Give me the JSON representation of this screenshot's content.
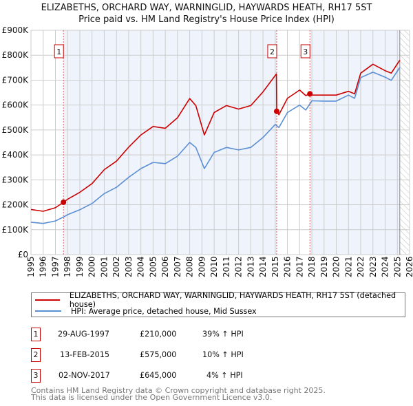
{
  "chart_data": {
    "type": "line",
    "title": "ELIZABETHS, ORCHARD WAY, WARNINGLID, HAYWARDS HEATH, RH17 5ST",
    "subtitle": "Price paid vs. HM Land Registry's House Price Index (HPI)",
    "xlim": [
      1995,
      2026
    ],
    "ylim": [
      0,
      900000
    ],
    "x_ticks": [
      "1995",
      "1996",
      "1997",
      "1998",
      "1999",
      "2000",
      "2001",
      "2002",
      "2003",
      "2004",
      "2005",
      "2006",
      "2007",
      "2008",
      "2009",
      "2010",
      "2011",
      "2012",
      "2013",
      "2014",
      "2015",
      "2016",
      "2017",
      "2018",
      "2019",
      "2020",
      "2021",
      "2022",
      "2023",
      "2024",
      "2025",
      "2026"
    ],
    "y_ticks": [
      {
        "value": 0,
        "label": "£0"
      },
      {
        "value": 100000,
        "label": "£100K"
      },
      {
        "value": 200000,
        "label": "£200K"
      },
      {
        "value": 300000,
        "label": "£300K"
      },
      {
        "value": 400000,
        "label": "£400K"
      },
      {
        "value": 500000,
        "label": "£500K"
      },
      {
        "value": 600000,
        "label": "£600K"
      },
      {
        "value": 700000,
        "label": "£700K"
      },
      {
        "value": 800000,
        "label": "£800K"
      },
      {
        "value": 900000,
        "label": "£900K"
      }
    ],
    "grid": true,
    "data_end_year": 2025.2,
    "series": [
      {
        "name": "ELIZABETHS, ORCHARD WAY, WARNINGLID, HAYWARDS HEATH, RH17 5ST (detached house)",
        "color": "#cc0000",
        "x": [
          1995,
          1996,
          1997,
          1997.66,
          1998,
          1999,
          2000,
          2001,
          2002,
          2003,
          2004,
          2005,
          2006,
          2007,
          2008,
          2008.5,
          2009.2,
          2010,
          2011,
          2012,
          2013,
          2014,
          2015.1,
          2015.12,
          2015.3,
          2016,
          2017,
          2017.5,
          2017.84,
          2018,
          2019,
          2020,
          2021,
          2021.5,
          2022,
          2023,
          2024,
          2024.5,
          2025.2
        ],
        "y": [
          181000,
          174000,
          188000,
          210000,
          222000,
          250000,
          285000,
          341000,
          375000,
          431000,
          480000,
          514000,
          507000,
          549000,
          626000,
          598000,
          480000,
          570000,
          598000,
          584000,
          598000,
          653000,
          725000,
          575000,
          561000,
          627000,
          660000,
          638000,
          645000,
          640000,
          640000,
          640000,
          655000,
          645000,
          728000,
          764000,
          738000,
          728000,
          780000
        ]
      },
      {
        "name": "HPI: Average price, detached house, Mid Sussex",
        "color": "#5b8fd4",
        "x": [
          1995,
          1996,
          1997,
          1997.66,
          1998,
          1999,
          2000,
          2001,
          2002,
          2003,
          2004,
          2005,
          2006,
          2007,
          2008,
          2008.5,
          2009.2,
          2010,
          2011,
          2012,
          2013,
          2014,
          2015,
          2015.3,
          2016,
          2017,
          2017.5,
          2018,
          2019,
          2020,
          2021,
          2021.5,
          2022,
          2023,
          2024,
          2024.5,
          2025.2
        ],
        "y": [
          130000,
          125000,
          135000,
          151000,
          160000,
          180000,
          205000,
          245000,
          270000,
          310000,
          345000,
          370000,
          365000,
          395000,
          450000,
          430000,
          345000,
          410000,
          430000,
          420000,
          430000,
          470000,
          522000,
          510000,
          570000,
          600000,
          580000,
          617000,
          616000,
          616000,
          640000,
          627000,
          710000,
          732000,
          712000,
          699000,
          751000
        ]
      }
    ],
    "sales": [
      {
        "id": "1",
        "x": 1997.66,
        "y": 210000,
        "date": "29-AUG-1997",
        "price": "£210,000",
        "hpi": "39% ↑ HPI"
      },
      {
        "id": "2",
        "x": 2015.12,
        "y": 575000,
        "date": "13-FEB-2015",
        "price": "£575,000",
        "hpi": "10% ↑ HPI"
      },
      {
        "id": "3",
        "x": 2017.84,
        "y": 645000,
        "date": "02-NOV-2017",
        "price": "£645,000",
        "hpi": "4% ↑ HPI"
      }
    ]
  },
  "footer": {
    "line1": "Contains HM Land Registry data © Crown copyright and database right 2025.",
    "line2": "This data is licensed under the Open Government Licence v3.0."
  },
  "colors": {
    "property": "#cc0000",
    "hpi": "#5b8fd4",
    "shade": "#eef3fc",
    "grid": "#cccccc"
  }
}
